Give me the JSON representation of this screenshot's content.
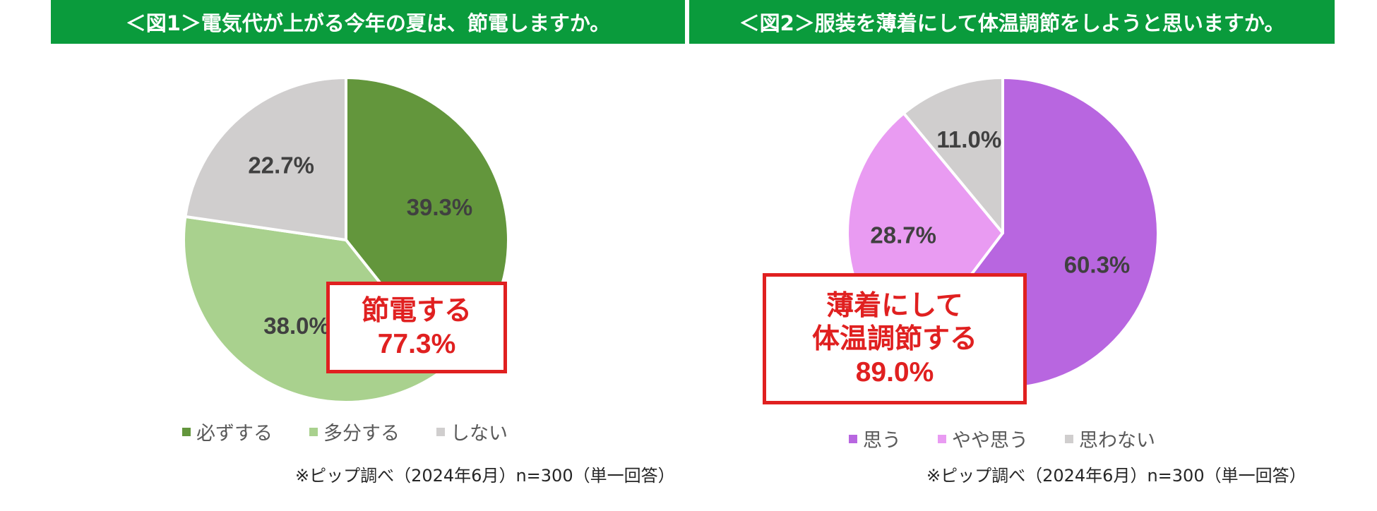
{
  "figures": [
    {
      "heading": "＜図1＞電気代が上がる今年の夏は、節電しますか。",
      "callout_lines": [
        "節電する",
        "77.3%"
      ],
      "source": "※ピップ調べ（2024年6月）n=300（単一回答）"
    },
    {
      "heading": "＜図2＞服装を薄着にして体温調節をしようと思いますか。",
      "callout_lines": [
        "薄着にして",
        "体温調節する",
        "89.0%"
      ],
      "source": "※ピップ調べ（2024年6月）n=300（単一回答）"
    }
  ],
  "chart_data": [
    {
      "type": "pie",
      "title": "＜図1＞電気代が上がる今年の夏は、節電しますか。",
      "slices": [
        {
          "label": "必ずする",
          "value": 39.3,
          "value_label": "39.3%",
          "color": "#63963c"
        },
        {
          "label": "多分する",
          "value": 38.0,
          "value_label": "38.0%",
          "color": "#a9d18e"
        },
        {
          "label": "しない",
          "value": 22.7,
          "value_label": "22.7%",
          "color": "#d0cece"
        }
      ],
      "start": "12 o'clock, clockwise",
      "legend": "bottom"
    },
    {
      "type": "pie",
      "title": "＜図2＞服装を薄着にして体温調節をしようと思いますか。",
      "slices": [
        {
          "label": "思う",
          "value": 60.3,
          "value_label": "60.3%",
          "color": "#b866e0"
        },
        {
          "label": "やや思う",
          "value": 28.7,
          "value_label": "28.7%",
          "color": "#e99bf2"
        },
        {
          "label": "思わない",
          "value": 11.0,
          "value_label": "11.0%",
          "color": "#d0cece"
        }
      ],
      "start": "12 o'clock, clockwise",
      "legend": "bottom"
    }
  ]
}
